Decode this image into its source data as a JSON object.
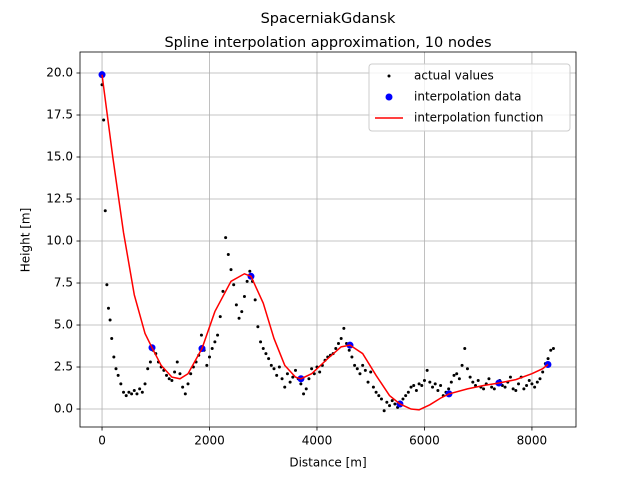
{
  "chart_data": {
    "type": "line",
    "suptitle": "SpacerniakGdansk",
    "title": "Spline interpolation approximation, 10 nodes",
    "xlabel": "Distance [m]",
    "ylabel": "Height [m]",
    "xlim": [
      -410,
      8820
    ],
    "ylim": [
      -1.07,
      21.25
    ],
    "xticks": [
      0,
      2000,
      4000,
      6000,
      8000
    ],
    "yticks": [
      {
        "value": 0,
        "label": "0.0"
      },
      {
        "value": 2.5,
        "label": "2.5"
      },
      {
        "value": 5,
        "label": "5.0"
      },
      {
        "value": 7.5,
        "label": "7.5"
      },
      {
        "value": 10,
        "label": "10.0"
      },
      {
        "value": 12.5,
        "label": "12.5"
      },
      {
        "value": 15,
        "label": "15.0"
      },
      {
        "value": 17.5,
        "label": "17.5"
      },
      {
        "value": 20,
        "label": "20.0"
      }
    ],
    "grid": true,
    "legend": "upper right",
    "series": [
      {
        "name": "actual values",
        "type": "scatter",
        "color": "#000000",
        "size": 1.5,
        "x": [
          0,
          30,
          60,
          90,
          120,
          150,
          180,
          220,
          260,
          300,
          350,
          400,
          450,
          500,
          550,
          600,
          650,
          700,
          750,
          800,
          850,
          900,
          950,
          1000,
          1050,
          1100,
          1150,
          1200,
          1250,
          1300,
          1350,
          1400,
          1450,
          1500,
          1550,
          1600,
          1650,
          1700,
          1750,
          1800,
          1850,
          1900,
          1950,
          2000,
          2050,
          2100,
          2150,
          2200,
          2250,
          2300,
          2350,
          2400,
          2450,
          2500,
          2550,
          2600,
          2650,
          2700,
          2750,
          2800,
          2850,
          2900,
          2950,
          3000,
          3050,
          3100,
          3150,
          3200,
          3250,
          3300,
          3350,
          3400,
          3450,
          3500,
          3550,
          3600,
          3650,
          3700,
          3750,
          3800,
          3850,
          3900,
          3950,
          4000,
          4050,
          4100,
          4150,
          4200,
          4250,
          4300,
          4350,
          4400,
          4450,
          4500,
          4550,
          4600,
          4650,
          4700,
          4750,
          4800,
          4850,
          4900,
          4950,
          5000,
          5050,
          5100,
          5150,
          5200,
          5250,
          5300,
          5350,
          5400,
          5450,
          5500,
          5550,
          5600,
          5650,
          5700,
          5750,
          5800,
          5850,
          5900,
          5950,
          6000,
          6050,
          6100,
          6150,
          6200,
          6250,
          6300,
          6350,
          6400,
          6450,
          6500,
          6550,
          6600,
          6650,
          6700,
          6750,
          6800,
          6850,
          6900,
          6950,
          7000,
          7050,
          7100,
          7150,
          7200,
          7250,
          7300,
          7350,
          7400,
          7450,
          7500,
          7550,
          7600,
          7650,
          7700,
          7750,
          7800,
          7850,
          7900,
          7950,
          8000,
          8050,
          8100,
          8150,
          8200,
          8250,
          8300,
          8350,
          8400
        ],
        "values": [
          19.3,
          17.2,
          11.8,
          7.4,
          6.0,
          5.3,
          4.2,
          3.1,
          2.4,
          2.0,
          1.5,
          1.0,
          0.8,
          1.0,
          0.9,
          1.1,
          0.9,
          1.2,
          1.0,
          1.5,
          2.4,
          2.8,
          3.5,
          3.3,
          2.8,
          2.5,
          2.3,
          2.0,
          1.8,
          1.7,
          2.2,
          2.8,
          2.1,
          1.3,
          0.9,
          1.5,
          2.1,
          2.5,
          2.8,
          3.2,
          4.4,
          3.5,
          2.6,
          3.1,
          3.6,
          4.0,
          4.4,
          5.5,
          7.0,
          10.2,
          9.2,
          8.3,
          7.4,
          6.2,
          5.4,
          5.8,
          6.7,
          7.6,
          8.2,
          7.6,
          6.5,
          4.9,
          4.0,
          3.6,
          3.3,
          3.0,
          2.6,
          2.4,
          2.0,
          2.5,
          1.8,
          1.3,
          2.1,
          1.6,
          1.9,
          2.3,
          1.8,
          1.5,
          0.9,
          1.2,
          1.8,
          2.4,
          2.1,
          2.5,
          2.2,
          2.6,
          2.9,
          3.1,
          3.2,
          3.3,
          3.6,
          3.9,
          4.2,
          4.8,
          3.9,
          3.5,
          3.1,
          2.6,
          2.4,
          2.1,
          2.6,
          2.3,
          1.6,
          2.2,
          1.3,
          1.0,
          0.8,
          0.6,
          -0.1,
          0.4,
          0.2,
          0.5,
          0.3,
          0.1,
          0.4,
          0.6,
          0.8,
          1.0,
          1.3,
          1.4,
          1.1,
          1.5,
          1.4,
          1.7,
          2.3,
          1.6,
          1.3,
          1.5,
          1.1,
          1.4,
          0.8,
          1.0,
          1.2,
          1.6,
          2.0,
          2.1,
          1.8,
          2.6,
          3.6,
          2.4,
          1.9,
          1.6,
          1.4,
          1.7,
          1.3,
          1.2,
          1.5,
          1.8,
          1.3,
          1.2,
          1.5,
          1.7,
          1.4,
          1.3,
          1.6,
          1.9,
          1.2,
          1.1,
          1.5,
          1.9,
          1.2,
          1.4,
          1.7,
          1.5,
          1.3,
          1.6,
          1.8,
          2.2,
          2.7,
          3.0,
          3.5,
          3.6
        ]
      },
      {
        "name": "interpolation data",
        "type": "scatter",
        "color": "#0000ff",
        "size": 3.5,
        "x": [
          0,
          930,
          1860,
          2772,
          3702,
          4614,
          5544,
          6456,
          7386,
          8298
        ],
        "values": [
          19.9,
          3.65,
          3.6,
          7.9,
          1.8,
          3.8,
          0.3,
          0.9,
          1.55,
          2.65
        ]
      },
      {
        "name": "interpolation function",
        "type": "line",
        "color": "#ff0000",
        "x": [
          0,
          200,
          400,
          600,
          800,
          930,
          1100,
          1300,
          1450,
          1600,
          1860,
          2100,
          2400,
          2650,
          2772,
          3000,
          3200,
          3400,
          3600,
          3702,
          3900,
          4200,
          4450,
          4614,
          4850,
          5100,
          5350,
          5544,
          5750,
          5900,
          6100,
          6300,
          6456,
          6800,
          7100,
          7386,
          7700,
          8000,
          8200,
          8298
        ],
        "values": [
          19.9,
          15.0,
          10.5,
          6.8,
          4.5,
          3.65,
          2.6,
          1.9,
          1.8,
          2.1,
          3.6,
          5.8,
          7.6,
          8.05,
          7.9,
          6.3,
          4.2,
          2.6,
          1.9,
          1.8,
          2.1,
          3.0,
          3.7,
          3.8,
          3.3,
          2.0,
          0.8,
          0.3,
          0.0,
          -0.05,
          0.25,
          0.65,
          0.9,
          1.2,
          1.4,
          1.55,
          1.75,
          2.1,
          2.4,
          2.65
        ]
      }
    ]
  }
}
